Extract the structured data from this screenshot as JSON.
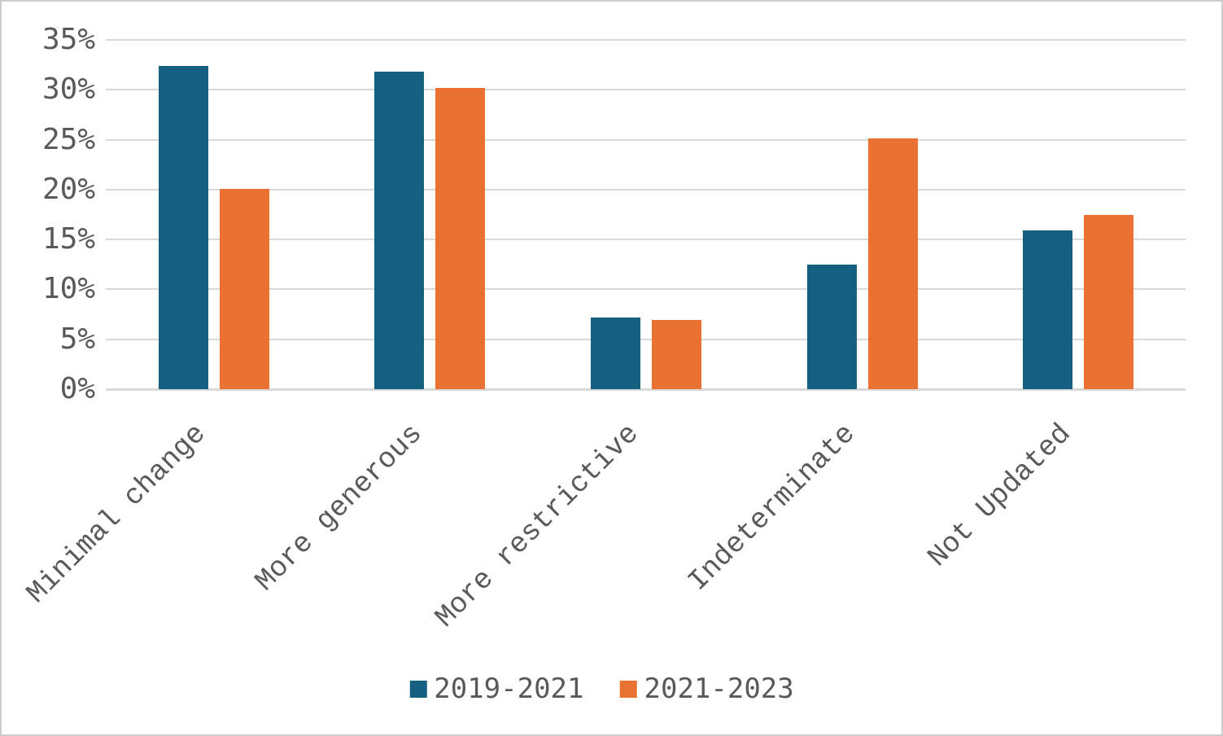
{
  "chart_data": {
    "type": "bar",
    "title": "",
    "xlabel": "",
    "ylabel": "",
    "categories": [
      "Minimal change",
      "More generous",
      "More restrictive",
      "Indeterminate",
      "Not Updated"
    ],
    "series": [
      {
        "name": "2019-2021",
        "color": "#156082",
        "values": [
          32.4,
          31.8,
          7.2,
          12.5,
          15.9
        ]
      },
      {
        "name": "2021-2023",
        "color": "#E97132",
        "values": [
          20.1,
          30.2,
          6.9,
          25.1,
          17.5
        ]
      }
    ],
    "ylim": [
      0,
      35
    ],
    "ytick_step": 5,
    "yticks": [
      "35%",
      "30%",
      "25%",
      "20%",
      "15%",
      "10%",
      "5%",
      "0%"
    ],
    "grid": true,
    "legend_position": "bottom"
  },
  "colors": {
    "grid": "#d9d9d9",
    "text": "#595959",
    "border": "#cccccc",
    "background": "#ffffff"
  }
}
